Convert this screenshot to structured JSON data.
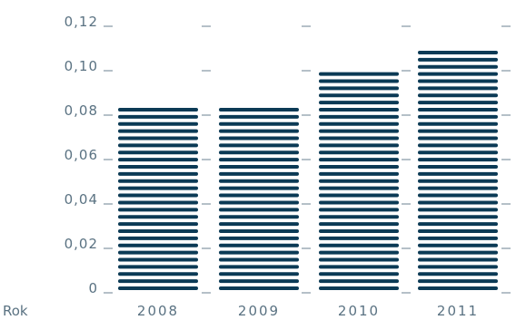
{
  "chart_data": {
    "type": "bar",
    "categories": [
      "2008",
      "2009",
      "2010",
      "2011"
    ],
    "values": [
      0.082,
      0.082,
      0.098,
      0.106
    ],
    "ylim": [
      0,
      0.12
    ],
    "yticks": [
      0,
      0.02,
      0.04,
      0.06,
      0.08,
      0.1,
      0.12
    ],
    "ytick_labels": [
      "0",
      "0,02",
      "0,04",
      "0,06",
      "0,08",
      "0,10",
      "0,12"
    ],
    "xlabel": "Rok",
    "ylabel": "",
    "grid": false,
    "bar_style": "horizontal-stripes"
  },
  "colors": {
    "bar": "#0b3a55",
    "text": "#5a7282",
    "tick": "#6b8090"
  }
}
